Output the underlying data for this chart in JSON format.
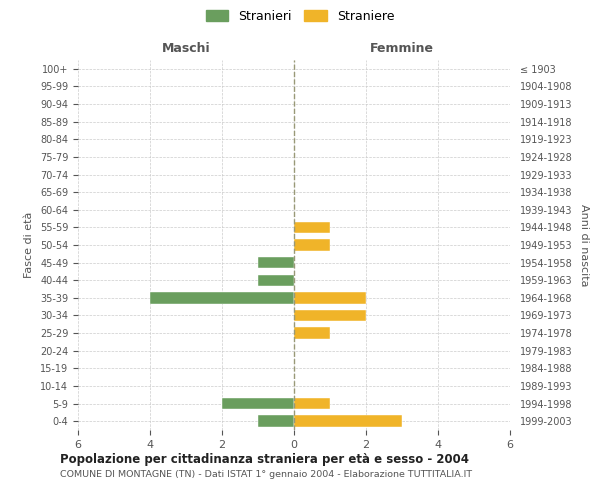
{
  "age_groups": [
    "100+",
    "95-99",
    "90-94",
    "85-89",
    "80-84",
    "75-79",
    "70-74",
    "65-69",
    "60-64",
    "55-59",
    "50-54",
    "45-49",
    "40-44",
    "35-39",
    "30-34",
    "25-29",
    "20-24",
    "15-19",
    "10-14",
    "5-9",
    "0-4"
  ],
  "birth_years": [
    "≤ 1903",
    "1904-1908",
    "1909-1913",
    "1914-1918",
    "1919-1923",
    "1924-1928",
    "1929-1933",
    "1934-1938",
    "1939-1943",
    "1944-1948",
    "1949-1953",
    "1954-1958",
    "1959-1963",
    "1964-1968",
    "1969-1973",
    "1974-1978",
    "1979-1983",
    "1984-1988",
    "1989-1993",
    "1994-1998",
    "1999-2003"
  ],
  "maschi": [
    0,
    0,
    0,
    0,
    0,
    0,
    0,
    0,
    0,
    0,
    0,
    1,
    1,
    4,
    0,
    0,
    0,
    0,
    0,
    2,
    1
  ],
  "femmine": [
    0,
    0,
    0,
    0,
    0,
    0,
    0,
    0,
    0,
    1,
    1,
    0,
    0,
    2,
    2,
    1,
    0,
    0,
    0,
    1,
    3
  ],
  "maschi_color": "#6a9e5e",
  "femmine_color": "#f0b429",
  "title": "Popolazione per cittadinanza straniera per età e sesso - 2004",
  "subtitle": "COMUNE DI MONTAGNE (TN) - Dati ISTAT 1° gennaio 2004 - Elaborazione TUTTITALIA.IT",
  "ylabel_left": "Fasce di età",
  "ylabel_right": "Anni di nascita",
  "xlabel_left": "Maschi",
  "xlabel_right": "Femmine",
  "legend_stranieri": "Stranieri",
  "legend_straniere": "Straniere",
  "xlim": 6,
  "background_color": "#ffffff",
  "grid_color": "#cccccc"
}
